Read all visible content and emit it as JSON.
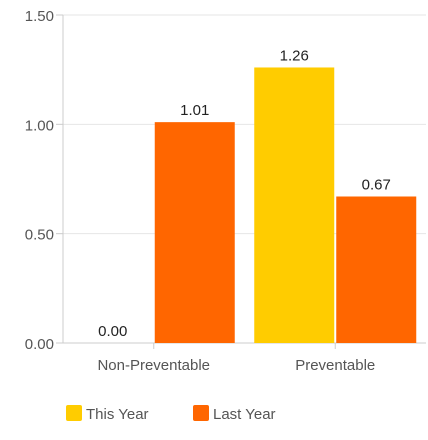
{
  "chart_data": {
    "type": "bar",
    "categories": [
      "Non-Preventable",
      "Preventable"
    ],
    "series": [
      {
        "name": "This Year",
        "values": [
          0.0,
          1.26
        ],
        "color": "#FFCC00"
      },
      {
        "name": "Last Year",
        "values": [
          1.01,
          0.67
        ],
        "color": "#FF6600"
      }
    ],
    "value_labels": [
      [
        "0.00",
        "1.26"
      ],
      [
        "1.01",
        "0.67"
      ]
    ],
    "ylim": [
      0,
      1.5
    ],
    "yticks": [
      {
        "value": 0,
        "label": "0.00"
      },
      {
        "value": 0.5,
        "label": "0.50"
      },
      {
        "value": 1.0,
        "label": "1.00"
      },
      {
        "value": 1.5,
        "label": "1.50"
      }
    ],
    "grid": true,
    "legend_position": "bottom",
    "xlabel": "",
    "ylabel": "",
    "title": ""
  }
}
